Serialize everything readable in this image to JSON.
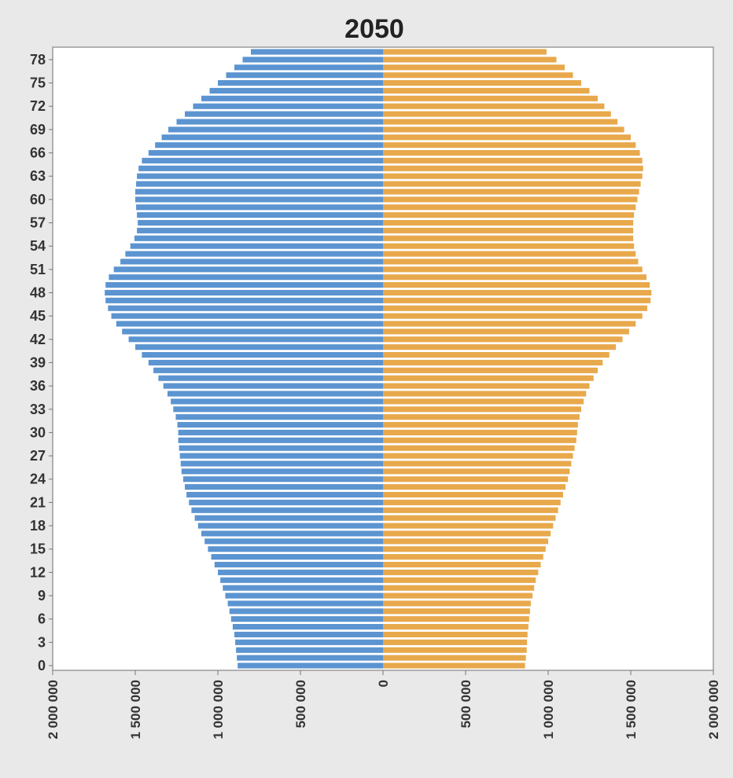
{
  "chart_data": {
    "type": "bar",
    "orientation": "horizontal",
    "layout": "population-pyramid",
    "title": "2050",
    "xlabel": "",
    "ylabel": "",
    "xlim": [
      -2000000,
      2000000
    ],
    "ages": [
      0,
      1,
      2,
      3,
      4,
      5,
      6,
      7,
      8,
      9,
      10,
      11,
      12,
      13,
      14,
      15,
      16,
      17,
      18,
      19,
      20,
      21,
      22,
      23,
      24,
      25,
      26,
      27,
      28,
      29,
      30,
      31,
      32,
      33,
      34,
      35,
      36,
      37,
      38,
      39,
      40,
      41,
      42,
      43,
      44,
      45,
      46,
      47,
      48,
      49,
      50,
      51,
      52,
      53,
      54,
      55,
      56,
      57,
      58,
      59,
      60,
      61,
      62,
      63,
      64,
      65,
      66,
      67,
      68,
      69,
      70,
      71,
      72,
      73,
      74,
      75,
      76,
      77,
      78,
      79
    ],
    "y_tick_labels": [
      "0",
      "3",
      "6",
      "9",
      "12",
      "15",
      "18",
      "21",
      "24",
      "27",
      "30",
      "33",
      "36",
      "39",
      "42",
      "45",
      "48",
      "51",
      "54",
      "57",
      "60",
      "63",
      "66",
      "69",
      "72",
      "75",
      "78"
    ],
    "x_tick_values": [
      -2000000,
      -1500000,
      -1000000,
      -500000,
      0,
      500000,
      1000000,
      1500000,
      2000000
    ],
    "x_tick_labels": [
      "2 000 000",
      "1 500 000",
      "1 000 000",
      "500 000",
      "0",
      "500 000",
      "1 000 000",
      "1 500 000",
      "2 000 000"
    ],
    "series": [
      {
        "side": "left",
        "color": "#5b94d1",
        "values": [
          880000,
          885000,
          890000,
          895000,
          900000,
          910000,
          920000,
          930000,
          940000,
          955000,
          970000,
          985000,
          1000000,
          1020000,
          1040000,
          1060000,
          1080000,
          1100000,
          1120000,
          1140000,
          1160000,
          1175000,
          1190000,
          1200000,
          1210000,
          1220000,
          1225000,
          1230000,
          1235000,
          1240000,
          1240000,
          1245000,
          1255000,
          1270000,
          1285000,
          1305000,
          1330000,
          1360000,
          1390000,
          1420000,
          1460000,
          1500000,
          1540000,
          1580000,
          1615000,
          1645000,
          1665000,
          1680000,
          1685000,
          1680000,
          1660000,
          1630000,
          1590000,
          1560000,
          1530000,
          1505000,
          1490000,
          1485000,
          1490000,
          1495000,
          1500000,
          1500000,
          1495000,
          1490000,
          1480000,
          1460000,
          1420000,
          1380000,
          1340000,
          1300000,
          1250000,
          1200000,
          1150000,
          1100000,
          1050000,
          1000000,
          950000,
          900000,
          850000,
          800000
        ]
      },
      {
        "side": "right",
        "color": "#e8a94c",
        "values": [
          860000,
          865000,
          870000,
          872000,
          875000,
          880000,
          885000,
          890000,
          895000,
          905000,
          915000,
          925000,
          940000,
          955000,
          970000,
          985000,
          1000000,
          1015000,
          1030000,
          1045000,
          1060000,
          1075000,
          1090000,
          1105000,
          1120000,
          1130000,
          1140000,
          1150000,
          1160000,
          1170000,
          1175000,
          1180000,
          1190000,
          1200000,
          1215000,
          1230000,
          1250000,
          1275000,
          1300000,
          1330000,
          1370000,
          1410000,
          1450000,
          1490000,
          1530000,
          1570000,
          1600000,
          1620000,
          1625000,
          1615000,
          1595000,
          1570000,
          1545000,
          1530000,
          1520000,
          1515000,
          1515000,
          1515000,
          1520000,
          1530000,
          1540000,
          1550000,
          1560000,
          1570000,
          1575000,
          1570000,
          1555000,
          1530000,
          1500000,
          1460000,
          1420000,
          1380000,
          1340000,
          1300000,
          1250000,
          1200000,
          1150000,
          1100000,
          1050000,
          990000
        ]
      }
    ]
  }
}
